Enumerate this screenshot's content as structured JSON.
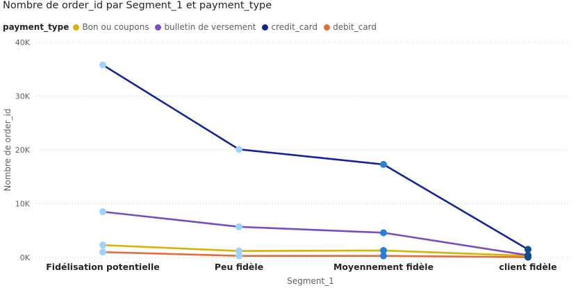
{
  "chart_data": {
    "type": "line",
    "title": "Nombre de order_id par Segment_1 et payment_type",
    "legend_title": "payment_type",
    "xlabel": "Segment_1",
    "ylabel": "Nombre de order_id",
    "categories": [
      "Fidélisation potentielle",
      "Peu fidèle",
      "Moyennement fidèle",
      "client fidèle"
    ],
    "ylim": [
      0,
      40000
    ],
    "yticks": [
      0,
      10000,
      20000,
      30000,
      40000
    ],
    "ytick_labels": [
      "0K",
      "10K",
      "20K",
      "30K",
      "40K"
    ],
    "grid": true,
    "legend_position": "top-left",
    "series": [
      {
        "name": "Bon ou coupons",
        "color": "#d9b300",
        "values": [
          2300,
          1200,
          1300,
          300
        ]
      },
      {
        "name": "bulletin de versement",
        "color": "#744ec2",
        "values": [
          8500,
          5700,
          4600,
          400
        ]
      },
      {
        "name": "credit_card",
        "color": "#12239e",
        "values": [
          35800,
          20100,
          17300,
          1500
        ]
      },
      {
        "name": "debit_card",
        "color": "#e66c37",
        "values": [
          1000,
          300,
          300,
          50
        ]
      }
    ],
    "marker_colors": [
      "#a0d1ff",
      "#a0d1ff",
      "#2b7fd9",
      "#0f4c8c"
    ]
  }
}
